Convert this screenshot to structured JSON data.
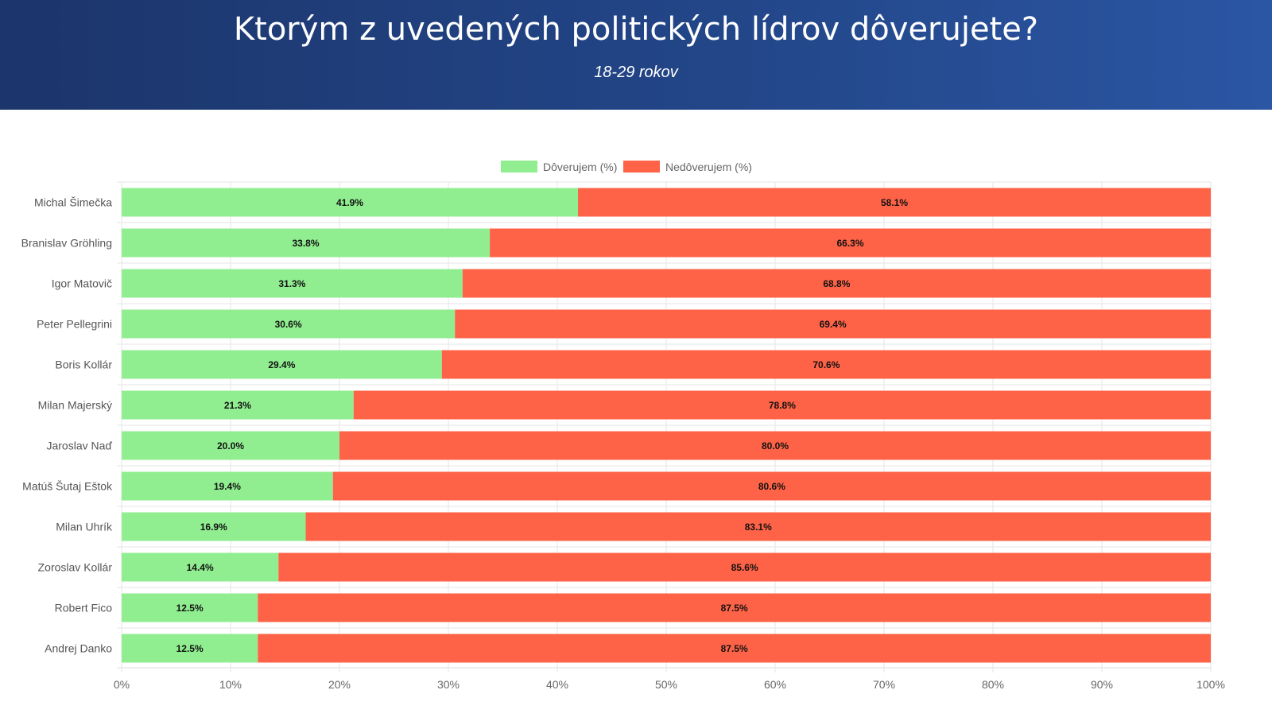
{
  "chart_data": {
    "type": "bar",
    "orientation": "horizontal",
    "stacked": true,
    "title": "Ktorým z uvedených politických lídrov dôverujete?",
    "subtitle": "18-29 rokov",
    "categories": [
      "Michal Šimečka",
      "Branislav Gröhling",
      "Igor Matovič",
      "Peter Pellegrini",
      "Boris Kollár",
      "Milan Majerský",
      "Jaroslav Naď",
      "Matúš Šutaj Eštok",
      "Milan Uhrík",
      "Zoroslav Kollár",
      "Robert Fico",
      "Andrej Danko"
    ],
    "series": [
      {
        "name": "Dôverujem (%)",
        "color": "#90ee90",
        "values": [
          41.9,
          33.8,
          31.3,
          30.6,
          29.4,
          21.3,
          20.0,
          19.4,
          16.9,
          14.4,
          12.5,
          12.5
        ]
      },
      {
        "name": "Nedôverujem (%)",
        "color": "#ff6347",
        "values": [
          58.1,
          66.3,
          68.8,
          69.4,
          70.6,
          78.8,
          80.0,
          80.6,
          83.1,
          85.6,
          87.5,
          87.5
        ]
      }
    ],
    "xlim": [
      0,
      100
    ],
    "xticks": [
      "0%",
      "10%",
      "20%",
      "30%",
      "40%",
      "50%",
      "60%",
      "70%",
      "80%",
      "90%",
      "100%"
    ],
    "legend": "top-center",
    "grid": true
  }
}
